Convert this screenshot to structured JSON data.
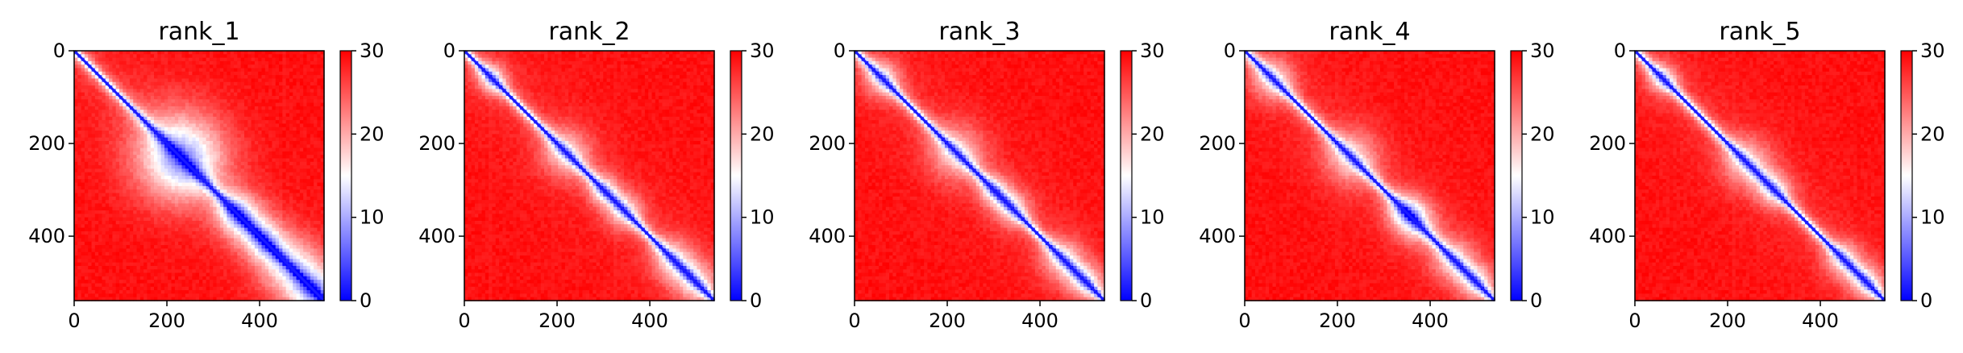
{
  "chart_data": [
    {
      "type": "heatmap",
      "title": "rank_1",
      "xlim": [
        0,
        539
      ],
      "ylim": [
        539,
        0
      ],
      "xticks": [
        0,
        200,
        400
      ],
      "yticks": [
        0,
        200,
        400
      ],
      "colorbar": {
        "range": [
          0,
          30
        ],
        "ticks": [
          0,
          10,
          20,
          30
        ],
        "colormap": "bwr"
      },
      "diagonal_blobs": [
        [
          220,
          30
        ],
        [
          240,
          24
        ],
        [
          345,
          12
        ],
        [
          370,
          16
        ],
        [
          410,
          12
        ],
        [
          450,
          18
        ],
        [
          500,
          20
        ],
        [
          525,
          14
        ]
      ]
    },
    {
      "type": "heatmap",
      "title": "rank_2",
      "xlim": [
        0,
        539
      ],
      "ylim": [
        539,
        0
      ],
      "xticks": [
        0,
        200,
        400
      ],
      "yticks": [
        0,
        200,
        400
      ],
      "colorbar": {
        "range": [
          0,
          30
        ],
        "ticks": [
          0,
          10,
          20,
          30
        ],
        "colormap": "bwr"
      },
      "diagonal_blobs": [
        [
          60,
          10
        ],
        [
          220,
          16
        ],
        [
          300,
          10
        ],
        [
          345,
          12
        ],
        [
          450,
          14
        ],
        [
          500,
          14
        ]
      ]
    },
    {
      "type": "heatmap",
      "title": "rank_3",
      "xlim": [
        0,
        539
      ],
      "ylim": [
        539,
        0
      ],
      "xticks": [
        0,
        200,
        400
      ],
      "yticks": [
        0,
        200,
        400
      ],
      "colorbar": {
        "range": [
          0,
          30
        ],
        "ticks": [
          0,
          10,
          20,
          30
        ],
        "colormap": "bwr"
      },
      "diagonal_blobs": [
        [
          60,
          12
        ],
        [
          220,
          18
        ],
        [
          300,
          10
        ],
        [
          340,
          12
        ],
        [
          450,
          14
        ],
        [
          500,
          12
        ]
      ]
    },
    {
      "type": "heatmap",
      "title": "rank_4",
      "xlim": [
        0,
        539
      ],
      "ylim": [
        539,
        0
      ],
      "xticks": [
        0,
        200,
        400
      ],
      "yticks": [
        0,
        200,
        400
      ],
      "colorbar": {
        "range": [
          0,
          30
        ],
        "ticks": [
          0,
          10,
          20,
          30
        ],
        "colormap": "bwr"
      },
      "diagonal_blobs": [
        [
          60,
          14
        ],
        [
          230,
          18
        ],
        [
          345,
          12
        ],
        [
          370,
          14
        ],
        [
          450,
          14
        ],
        [
          500,
          12
        ]
      ]
    },
    {
      "type": "heatmap",
      "title": "rank_5",
      "xlim": [
        0,
        539
      ],
      "ylim": [
        539,
        0
      ],
      "xticks": [
        0,
        200,
        400
      ],
      "yticks": [
        0,
        200,
        400
      ],
      "colorbar": {
        "range": [
          0,
          30
        ],
        "ticks": [
          0,
          10,
          20,
          30
        ],
        "colormap": "bwr"
      },
      "diagonal_blobs": [
        [
          60,
          10
        ],
        [
          240,
          16
        ],
        [
          300,
          12
        ],
        [
          450,
          12
        ],
        [
          500,
          12
        ]
      ]
    }
  ]
}
